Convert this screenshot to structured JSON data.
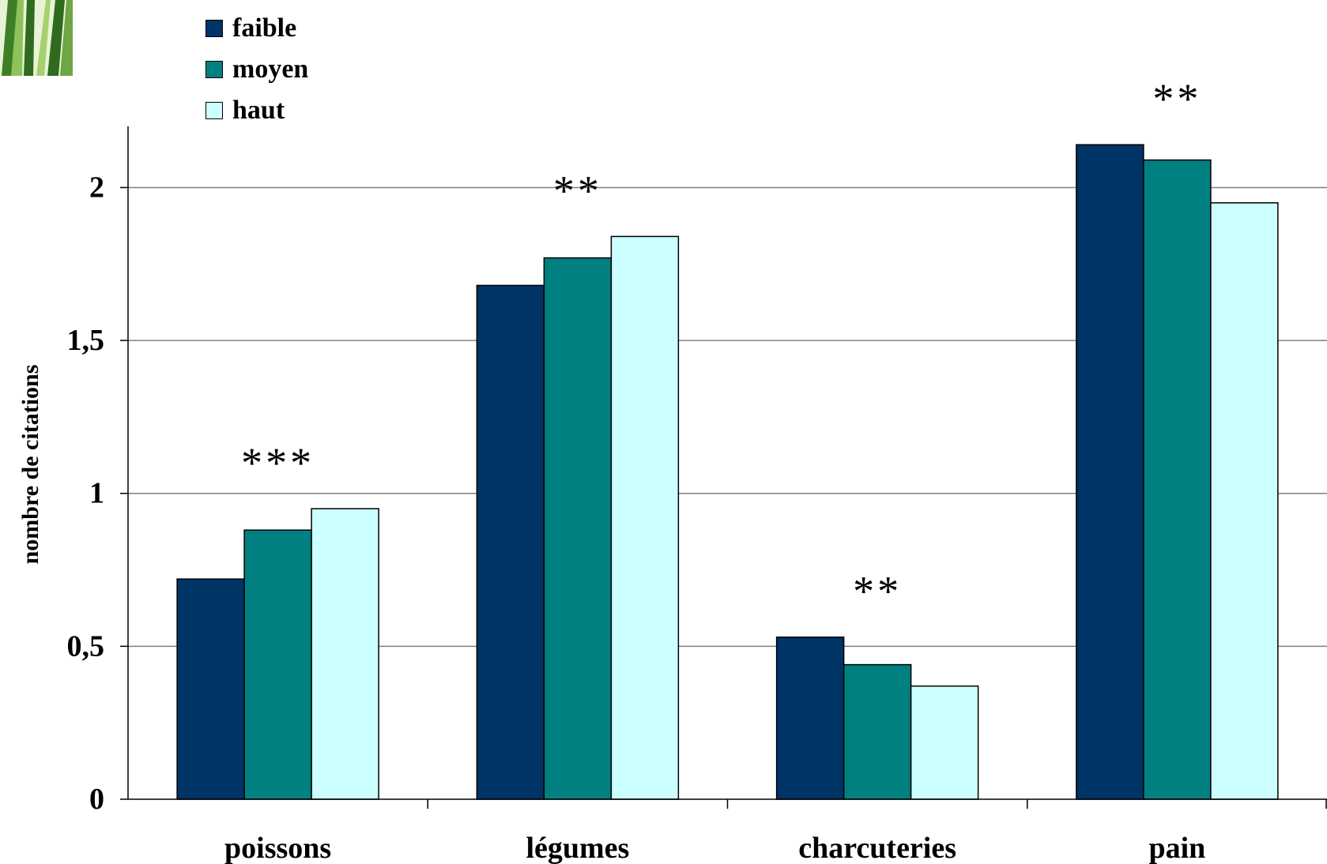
{
  "chart_data": {
    "type": "bar",
    "title": "",
    "xlabel": "",
    "ylabel": "nombre de citations",
    "ylim": [
      0,
      2.2
    ],
    "yticks": [
      {
        "value": 0,
        "label": "0"
      },
      {
        "value": 0.5,
        "label": "0,5"
      },
      {
        "value": 1,
        "label": "1"
      },
      {
        "value": 1.5,
        "label": "1,5"
      },
      {
        "value": 2,
        "label": "2"
      }
    ],
    "grid": true,
    "legend_position": "top-left",
    "categories": [
      "poissons",
      "légumes",
      "charcuteries",
      "pain"
    ],
    "annotations": [
      "***",
      "**",
      "**",
      "**"
    ],
    "series": [
      {
        "name": "faible",
        "color": "#003366",
        "values": [
          0.72,
          1.68,
          0.53,
          2.14
        ]
      },
      {
        "name": "moyen",
        "color": "#008080",
        "values": [
          0.88,
          1.77,
          0.44,
          2.09
        ]
      },
      {
        "name": "haut",
        "color": "#ccffff",
        "values": [
          0.95,
          1.84,
          0.37,
          1.95
        ]
      }
    ]
  },
  "decoration": {
    "icon": "grass-icon",
    "colors": [
      "#2e6b1e",
      "#7fb24a",
      "#e8f3d6"
    ]
  }
}
